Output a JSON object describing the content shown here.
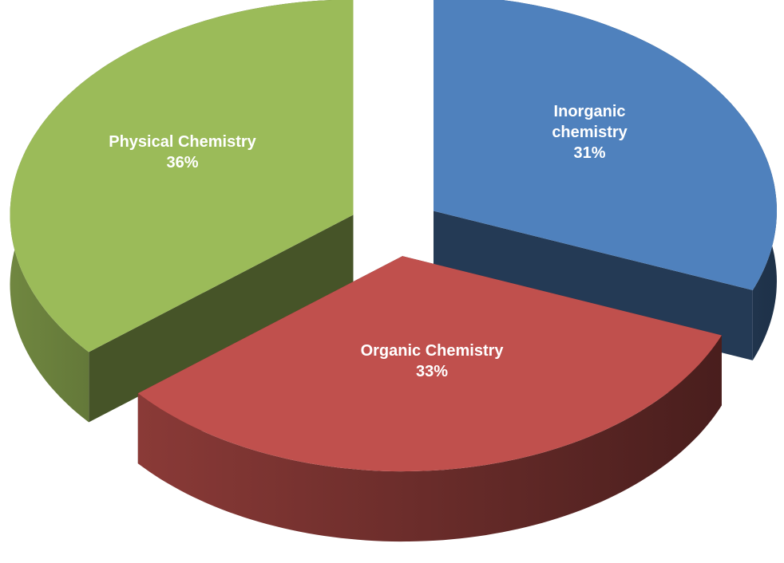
{
  "chart_data": {
    "type": "pie",
    "categories": [
      "Inorganic chemistry",
      "Organic Chemistry",
      "Physical Chemistry"
    ],
    "values": [
      31,
      33,
      36
    ],
    "value_labels": [
      "31%",
      "33%",
      "36%"
    ],
    "colors": [
      "#4f81bd",
      "#c0504d",
      "#9bbb59"
    ]
  }
}
